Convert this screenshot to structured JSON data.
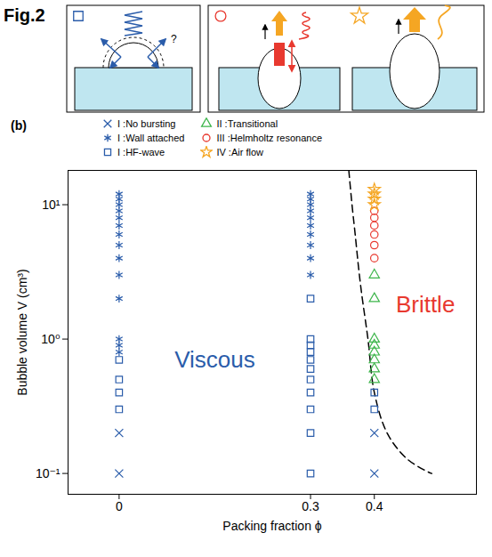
{
  "figure_label": "Fig.2",
  "schematic": {
    "question_mark": "?"
  },
  "chart_data": {
    "type": "scatter",
    "panel_label": "(b)",
    "x_label": "Packing fraction ϕ",
    "y_label": "Bubble volume V (cm³)",
    "xlim": [
      -0.08,
      0.56
    ],
    "xticks": [
      0,
      0.3,
      0.4
    ],
    "ylim": [
      0.07,
      18
    ],
    "yticks": [
      {
        "value": 0.1,
        "label": "10⁻¹"
      },
      {
        "value": 1,
        "label": "10⁰"
      },
      {
        "value": 10,
        "label": "10¹"
      }
    ],
    "log": "y",
    "grid": false,
    "legend": "top",
    "series": [
      {
        "name": "I :No bursting",
        "color": "#2a5caa",
        "marker": "times",
        "x": [
          0,
          0,
          0.4,
          0.4
        ],
        "values": [
          0.2,
          0.1,
          0.2,
          0.1
        ]
      },
      {
        "name": "I :Wall attached",
        "color": "#2a5caa",
        "marker": "asterisk",
        "x": [
          0,
          0,
          0,
          0,
          0,
          0,
          0,
          0,
          0,
          0,
          0,
          0,
          0,
          0,
          0.3,
          0.3,
          0.3,
          0.3,
          0.3,
          0.3,
          0.3,
          0.3,
          0.3,
          0.3
        ],
        "values": [
          12,
          11,
          10,
          9,
          8,
          7,
          6,
          5,
          4,
          3,
          2,
          1,
          0.9,
          0.8,
          12,
          11,
          10,
          9,
          8,
          7,
          6,
          5,
          4,
          3
        ]
      },
      {
        "name": "I :HF-wave",
        "color": "#2a5caa",
        "marker": "square",
        "x": [
          0,
          0,
          0,
          0,
          0.3,
          0.3,
          0.3,
          0.3,
          0.3,
          0.3,
          0.3,
          0.3,
          0.3,
          0.3,
          0.3,
          0.4,
          0.4
        ],
        "values": [
          0.7,
          0.5,
          0.4,
          0.3,
          2,
          1,
          0.9,
          0.8,
          0.7,
          0.6,
          0.5,
          0.4,
          0.3,
          0.2,
          0.1,
          0.4,
          0.3
        ]
      },
      {
        "name": "II :Transitional",
        "color": "#3cb54a",
        "marker": "triangle",
        "x": [
          0.4,
          0.4,
          0.4,
          0.4,
          0.4,
          0.4,
          0.4,
          0.4
        ],
        "values": [
          3,
          2,
          1,
          0.9,
          0.8,
          0.7,
          0.6,
          0.5
        ]
      },
      {
        "name": "III :Helmholtz resonance",
        "color": "#e8392f",
        "marker": "circle",
        "x": [
          0.4,
          0.4,
          0.4,
          0.4,
          0.4,
          0.4
        ],
        "values": [
          9,
          8,
          7,
          6,
          5,
          4
        ]
      },
      {
        "name": "IV :Air flow",
        "color": "#f5a623",
        "marker": "star",
        "x": [
          0.4,
          0.4,
          0.4,
          0.4
        ],
        "values": [
          13,
          12,
          11,
          10
        ]
      }
    ],
    "boundary": {
      "line_style": "dashed",
      "color": "#000000",
      "x": [
        0.36,
        0.365,
        0.37,
        0.375,
        0.38,
        0.39,
        0.4,
        0.42,
        0.45,
        0.48,
        0.49
      ],
      "values": [
        18,
        10,
        6,
        3.5,
        2.2,
        1,
        0.4,
        0.2,
        0.13,
        0.105,
        0.1
      ]
    },
    "annotations": [
      {
        "text": "Viscous",
        "color": "#2a5caa",
        "x": 0.15,
        "y": 0.7
      },
      {
        "text": "Brittle",
        "color": "#e8392f",
        "x": 0.48,
        "y": 1.8
      }
    ]
  }
}
